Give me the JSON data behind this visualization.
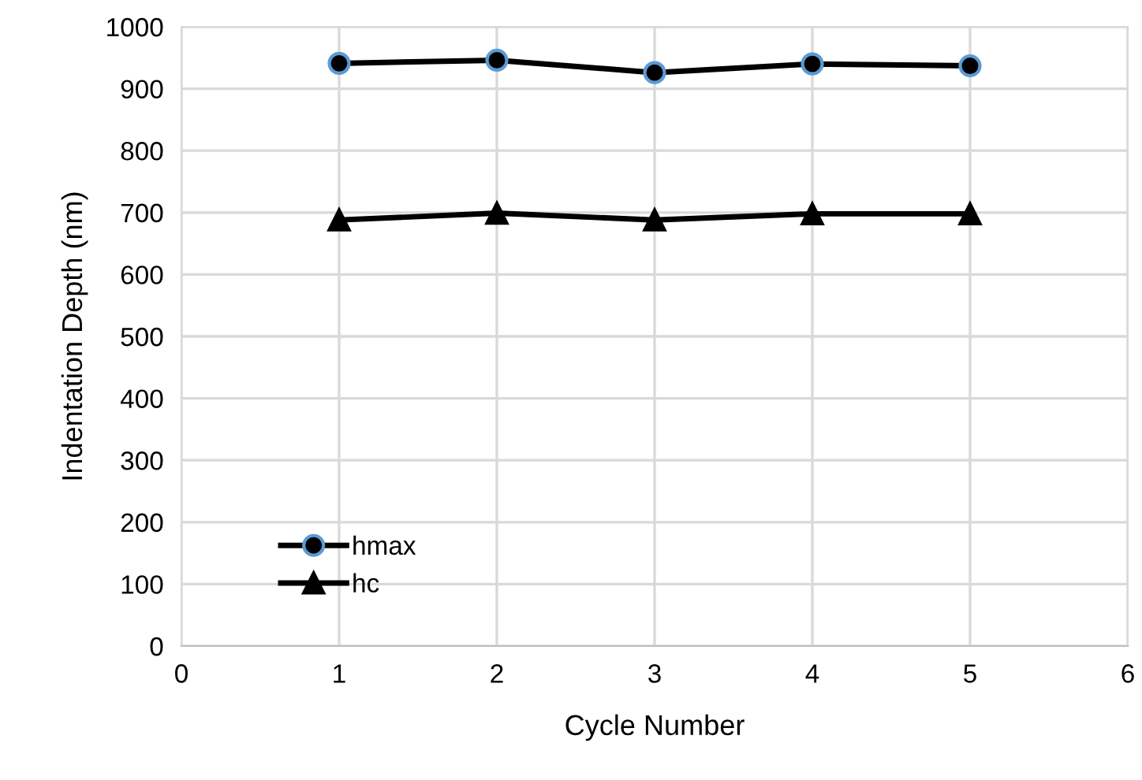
{
  "chart_data": {
    "type": "line",
    "xlabel": "Cycle Number",
    "ylabel": "Indentation Depth (nm)",
    "x": [
      1,
      2,
      3,
      4,
      5
    ],
    "series": [
      {
        "name": "hmax",
        "color": "#000000",
        "marker": "circle",
        "values": [
          941,
          946,
          926,
          940,
          937
        ]
      },
      {
        "name": "hc",
        "color": "#000000",
        "marker": "triangle",
        "values": [
          688,
          699,
          688,
          698,
          698
        ]
      }
    ],
    "xlim": [
      0,
      6
    ],
    "xticks": [
      0,
      1,
      2,
      3,
      4,
      5,
      6
    ],
    "ylim": [
      0,
      1000
    ],
    "yticks": [
      0,
      100,
      200,
      300,
      400,
      500,
      600,
      700,
      800,
      900,
      1000
    ],
    "grid": true,
    "legend": "bottom left",
    "line_style": "solid"
  }
}
